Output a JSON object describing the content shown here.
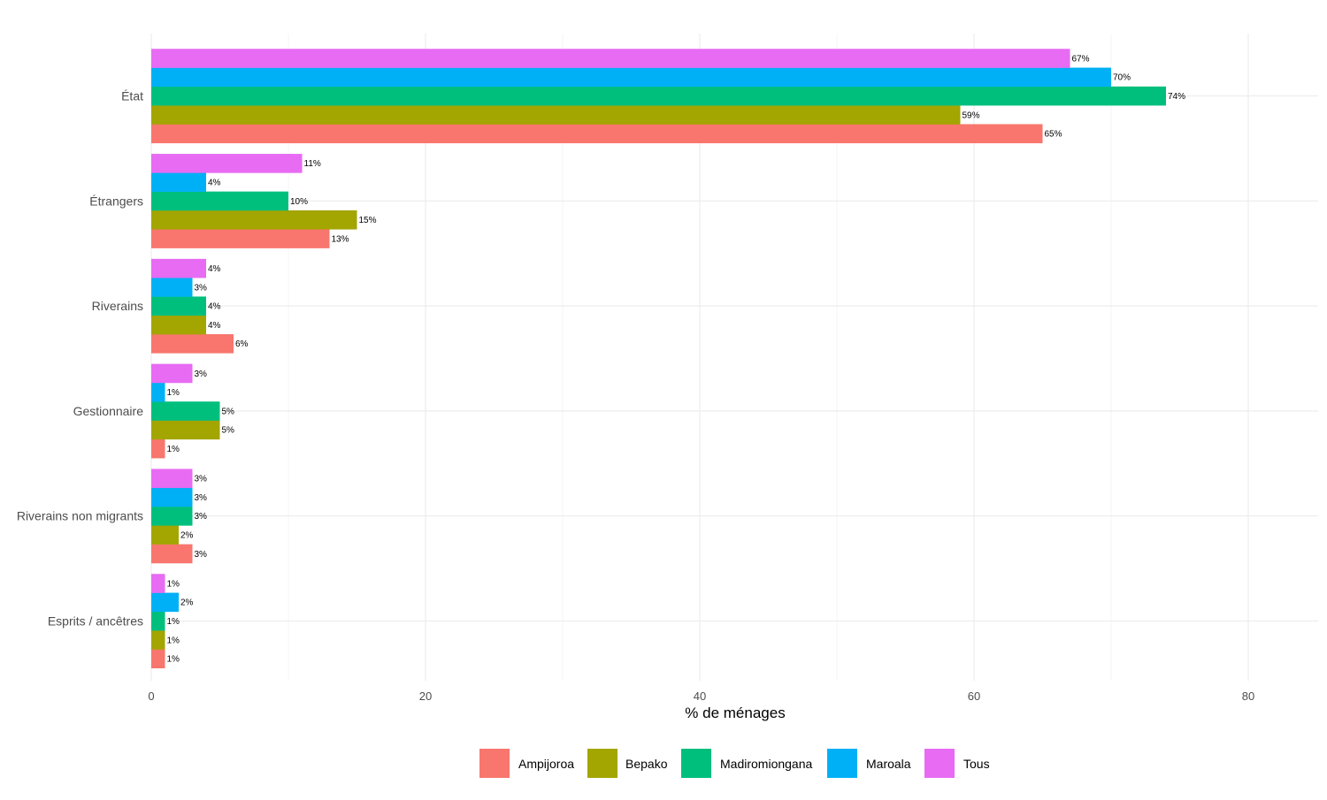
{
  "chart_data": {
    "type": "bar",
    "orientation": "horizontal",
    "title": "",
    "xlabel": "% de ménages",
    "ylabel": "",
    "xlim": [
      0,
      85
    ],
    "xticks": [
      0,
      20,
      40,
      60,
      80
    ],
    "grid": true,
    "legend_position": "bottom",
    "categories": [
      "État",
      "Étrangers",
      "Riverains",
      "Gestionnaire",
      "Riverains non migrants",
      "Esprits / ancêtres"
    ],
    "series": [
      {
        "name": "Ampijoroa",
        "color": "#F8766D",
        "values": [
          65,
          13,
          6,
          1,
          3,
          1
        ],
        "labels": [
          "65%",
          "13%",
          "6%",
          "1%",
          "3%",
          "1%"
        ]
      },
      {
        "name": "Bepako",
        "color": "#A3A500",
        "values": [
          59,
          15,
          4,
          5,
          2,
          1
        ],
        "labels": [
          "59%",
          "15%",
          "4%",
          "5%",
          "2%",
          "1%"
        ]
      },
      {
        "name": "Madiromiongana",
        "color": "#00BF7D",
        "values": [
          74,
          10,
          4,
          5,
          3,
          1
        ],
        "labels": [
          "74%",
          "10%",
          "4%",
          "5%",
          "3%",
          "1%"
        ]
      },
      {
        "name": "Maroala",
        "color": "#00B0F6",
        "values": [
          70,
          4,
          3,
          1,
          3,
          2
        ],
        "labels": [
          "70%",
          "4%",
          "3%",
          "1%",
          "3%",
          "2%"
        ]
      },
      {
        "name": "Tous",
        "color": "#E76BF3",
        "values": [
          67,
          11,
          4,
          3,
          3,
          1
        ],
        "labels": [
          "67%",
          "11%",
          "4%",
          "3%",
          "3%",
          "1%"
        ]
      }
    ]
  }
}
